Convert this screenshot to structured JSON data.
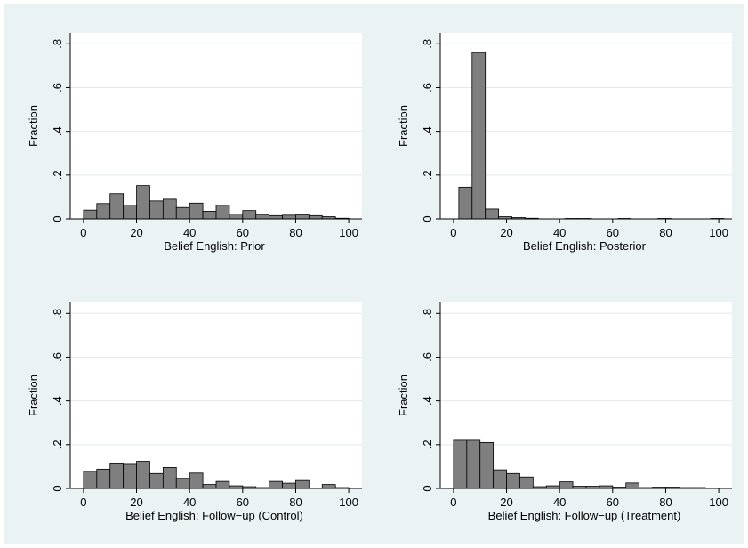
{
  "chart_data": [
    {
      "type": "bar",
      "xlabel": "Belief English: Prior",
      "ylabel": "Fraction",
      "xlim": [
        -5,
        105
      ],
      "ylim": [
        0,
        0.85
      ],
      "xticks": [
        0,
        20,
        40,
        60,
        80,
        100
      ],
      "yticks": [
        0,
        0.2,
        0.4,
        0.6,
        0.8
      ],
      "ytick_labels": [
        "0",
        ".2",
        ".4",
        ".6",
        ".8"
      ],
      "grid": true,
      "bin_width": 5,
      "bin_start": 0,
      "values": [
        0.04,
        0.07,
        0.115,
        0.063,
        0.152,
        0.082,
        0.09,
        0.052,
        0.072,
        0.035,
        0.062,
        0.022,
        0.038,
        0.02,
        0.015,
        0.017,
        0.018,
        0.015,
        0.01,
        0.003
      ]
    },
    {
      "type": "bar",
      "xlabel": "Belief English: Posterior",
      "ylabel": "Fraction",
      "xlim": [
        -5,
        105
      ],
      "ylim": [
        0,
        0.85
      ],
      "xticks": [
        0,
        20,
        40,
        60,
        80,
        100
      ],
      "yticks": [
        0,
        0.2,
        0.4,
        0.6,
        0.8
      ],
      "ytick_labels": [
        "0",
        ".2",
        ".4",
        ".6",
        ".8"
      ],
      "grid": true,
      "bin_width": 5,
      "bin_start": 2,
      "values": [
        0.145,
        0.76,
        0.045,
        0.01,
        0.006,
        0.003,
        0.0,
        0.0,
        0.002,
        0.002,
        0.0,
        0.0,
        0.002,
        0.0,
        0.0,
        0.002,
        0.0,
        0.0,
        0.0,
        0.002
      ]
    },
    {
      "type": "bar",
      "xlabel": "Belief English: Follow−up (Control)",
      "ylabel": "Fraction",
      "xlim": [
        -5,
        105
      ],
      "ylim": [
        0,
        0.85
      ],
      "xticks": [
        0,
        20,
        40,
        60,
        80,
        100
      ],
      "yticks": [
        0,
        0.2,
        0.4,
        0.6,
        0.8
      ],
      "ytick_labels": [
        "0",
        ".2",
        ".4",
        ".6",
        ".8"
      ],
      "grid": true,
      "bin_width": 5,
      "bin_start": 0,
      "values": [
        0.078,
        0.088,
        0.112,
        0.11,
        0.124,
        0.068,
        0.096,
        0.046,
        0.07,
        0.018,
        0.032,
        0.012,
        0.008,
        0.004,
        0.032,
        0.024,
        0.036,
        0.0,
        0.018,
        0.004
      ]
    },
    {
      "type": "bar",
      "xlabel": "Belief English: Follow−up (Treatment)",
      "ylabel": "Fraction",
      "xlim": [
        -5,
        105
      ],
      "ylim": [
        0,
        0.85
      ],
      "xticks": [
        0,
        20,
        40,
        60,
        80,
        100
      ],
      "yticks": [
        0,
        0.2,
        0.4,
        0.6,
        0.8
      ],
      "ytick_labels": [
        "0",
        ".2",
        ".4",
        ".6",
        ".8"
      ],
      "grid": true,
      "bin_width": 5,
      "bin_start": 0,
      "values": [
        0.22,
        0.22,
        0.21,
        0.085,
        0.068,
        0.052,
        0.008,
        0.012,
        0.03,
        0.01,
        0.01,
        0.012,
        0.006,
        0.025,
        0.004,
        0.006,
        0.006,
        0.004,
        0.004,
        0.0
      ]
    }
  ]
}
